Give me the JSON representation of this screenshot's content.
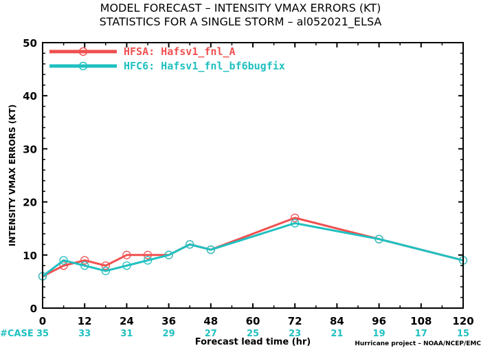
{
  "chart_data": {
    "type": "line",
    "title": "MODEL FORECAST – INTENSITY VMAX ERRORS (KT)",
    "subtitle": "STATISTICS FOR A SINGLE STORM – al052021_ELSA",
    "xlabel": "Forecast lead time (hr)",
    "ylabel": "INTENSITY VMAX ERRORS (KT)",
    "xlim": [
      0,
      120
    ],
    "ylim": [
      0,
      50
    ],
    "x_ticks": [
      "0",
      "12",
      "24",
      "36",
      "48",
      "60",
      "72",
      "84",
      "96",
      "108",
      "120"
    ],
    "y_ticks": [
      "0",
      "10",
      "20",
      "30",
      "40",
      "50"
    ],
    "grid": false,
    "legend_position": "top-left",
    "case_label": "#CASE",
    "case_counts": [
      "35",
      "33",
      "31",
      "29",
      "27",
      "25",
      "23",
      "21",
      "19",
      "17",
      "15"
    ],
    "credit": "Hurricane project – NOAA/NCEP/EMC",
    "series": [
      {
        "name": "HFSA: Hafsv1_fnl_A",
        "color": "#f05050",
        "x": [
          0,
          6,
          12,
          18,
          24,
          30,
          36,
          42,
          48,
          72,
          96,
          120
        ],
        "y": [
          6,
          8,
          9,
          8,
          10,
          10,
          10,
          12,
          11,
          17,
          13,
          9
        ]
      },
      {
        "name": "HFC6: Hafsv1_fnl_bf6bugfix",
        "color": "#20c0c0",
        "x": [
          0,
          6,
          12,
          18,
          24,
          30,
          36,
          42,
          48,
          72,
          96,
          120
        ],
        "y": [
          6,
          9,
          8,
          7,
          8,
          9,
          10,
          12,
          11,
          16,
          13,
          9
        ]
      }
    ]
  }
}
